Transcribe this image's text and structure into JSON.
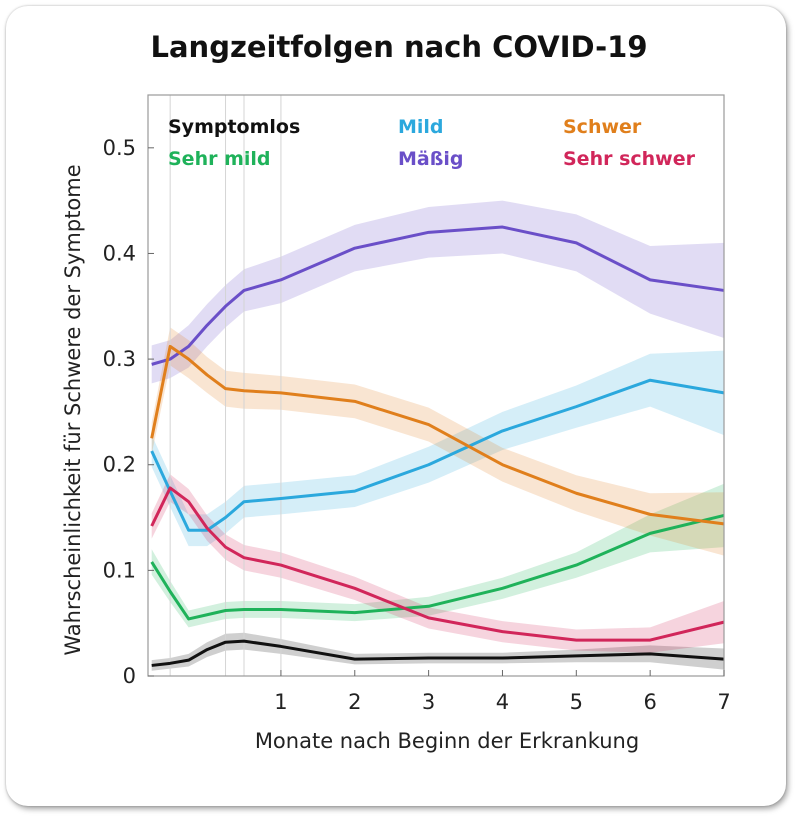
{
  "chart_data": {
    "type": "line",
    "title": "Langzeitfolgen nach COVID-19",
    "xlabel": "Monate nach Beginn der Erkrankung",
    "ylabel": "Wahrscheinlichkeit für Schwere der Symptome",
    "xlim": [
      -0.8,
      7
    ],
    "ylim": [
      0,
      0.55
    ],
    "xticks": [
      1,
      2,
      3,
      4,
      5,
      6,
      7
    ],
    "yticks": [
      0,
      0.1,
      0.2,
      0.3,
      0.4,
      0.5
    ],
    "ytick_labels": [
      "0",
      "0.1",
      "0.2",
      "0.3",
      "0.4",
      "0.5"
    ],
    "x": [
      -0.75,
      -0.5,
      -0.25,
      0.0,
      0.25,
      0.5,
      1,
      2,
      3,
      4,
      5,
      6,
      7
    ],
    "grid": false,
    "legend_position": "top",
    "series": [
      {
        "name": "Symptomlos",
        "color": "#111111",
        "values": [
          0.01,
          0.012,
          0.015,
          0.025,
          0.032,
          0.033,
          0.028,
          0.016,
          0.017,
          0.017,
          0.019,
          0.021,
          0.016
        ],
        "band": [
          0.005,
          0.005,
          0.006,
          0.007,
          0.008,
          0.008,
          0.007,
          0.005,
          0.005,
          0.005,
          0.006,
          0.008,
          0.01
        ]
      },
      {
        "name": "Sehr mild",
        "color": "#1fb25a",
        "values": [
          0.108,
          0.08,
          0.054,
          0.058,
          0.062,
          0.063,
          0.063,
          0.06,
          0.066,
          0.083,
          0.105,
          0.135,
          0.152
        ],
        "band": [
          0.012,
          0.01,
          0.008,
          0.008,
          0.008,
          0.008,
          0.008,
          0.008,
          0.009,
          0.01,
          0.012,
          0.018,
          0.03
        ]
      },
      {
        "name": "Mild",
        "color": "#2ba8dd",
        "values": [
          0.213,
          0.175,
          0.138,
          0.138,
          0.15,
          0.165,
          0.168,
          0.175,
          0.2,
          0.232,
          0.255,
          0.28,
          0.268
        ],
        "band": [
          0.015,
          0.015,
          0.015,
          0.015,
          0.015,
          0.015,
          0.015,
          0.015,
          0.017,
          0.018,
          0.02,
          0.025,
          0.04
        ]
      },
      {
        "name": "Mäßig",
        "color": "#6a4fc8",
        "values": [
          0.295,
          0.3,
          0.312,
          0.332,
          0.35,
          0.365,
          0.375,
          0.405,
          0.42,
          0.425,
          0.41,
          0.375,
          0.365
        ],
        "band": [
          0.018,
          0.018,
          0.02,
          0.02,
          0.02,
          0.02,
          0.022,
          0.022,
          0.024,
          0.025,
          0.027,
          0.032,
          0.045
        ]
      },
      {
        "name": "Schwer",
        "color": "#e07f1c",
        "values": [
          0.225,
          0.312,
          0.3,
          0.285,
          0.272,
          0.27,
          0.268,
          0.26,
          0.238,
          0.2,
          0.173,
          0.153,
          0.144
        ],
        "band": [
          0.015,
          0.018,
          0.018,
          0.017,
          0.017,
          0.017,
          0.016,
          0.016,
          0.016,
          0.016,
          0.017,
          0.02,
          0.03
        ]
      },
      {
        "name": "Sehr schwer",
        "color": "#d1265a",
        "values": [
          0.142,
          0.178,
          0.165,
          0.14,
          0.122,
          0.112,
          0.105,
          0.083,
          0.055,
          0.042,
          0.034,
          0.034,
          0.051
        ],
        "band": [
          0.012,
          0.013,
          0.012,
          0.012,
          0.012,
          0.012,
          0.012,
          0.011,
          0.01,
          0.01,
          0.01,
          0.012,
          0.02
        ]
      }
    ]
  }
}
